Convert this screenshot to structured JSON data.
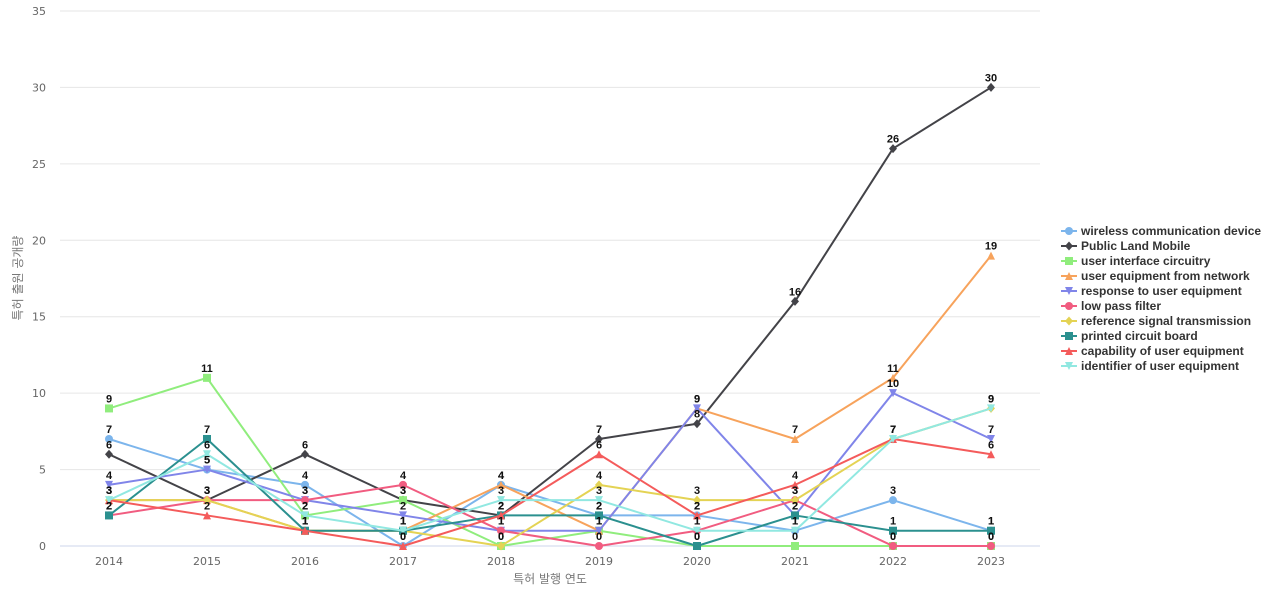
{
  "chart_data": {
    "type": "line",
    "title": "",
    "xlabel": "특허 발행 연도",
    "ylabel": "특허 출원 공개량",
    "ylim": [
      0,
      35
    ],
    "yticks": [
      0,
      5,
      10,
      15,
      20,
      25,
      30,
      35
    ],
    "grid": true,
    "legend_position": "right",
    "categories": [
      "2014",
      "2015",
      "2016",
      "2017",
      "2018",
      "2019",
      "2020",
      "2021",
      "2022",
      "2023"
    ],
    "series": [
      {
        "name": "wireless communication device",
        "color": "#7cb5ec",
        "marker": "circle",
        "values": [
          7,
          5,
          4,
          0,
          4,
          2,
          2,
          1,
          3,
          1
        ]
      },
      {
        "name": "Public Land Mobile",
        "color": "#434348",
        "marker": "diamond",
        "values": [
          6,
          3,
          6,
          3,
          2,
          7,
          8,
          16,
          26,
          30
        ]
      },
      {
        "name": "user interface circuitry",
        "color": "#90ed7d",
        "marker": "square",
        "values": [
          9,
          11,
          2,
          3,
          0,
          1,
          0,
          0,
          0,
          0
        ]
      },
      {
        "name": "user equipment from network",
        "color": "#f7a35c",
        "marker": "triangle",
        "values": [
          3,
          3,
          1,
          1,
          4,
          1,
          9,
          7,
          11,
          19
        ]
      },
      {
        "name": "response to user equipment",
        "color": "#8085e9",
        "marker": "triangle-down",
        "values": [
          4,
          5,
          3,
          2,
          1,
          1,
          9,
          2,
          10,
          7
        ]
      },
      {
        "name": "low pass filter",
        "color": "#f15c80",
        "marker": "circle",
        "values": [
          2,
          3,
          3,
          4,
          1,
          0,
          1,
          3,
          0,
          0
        ]
      },
      {
        "name": "reference signal transmission",
        "color": "#e4d354",
        "marker": "diamond",
        "values": [
          3,
          3,
          1,
          1,
          0,
          4,
          3,
          3,
          7,
          9
        ]
      },
      {
        "name": "printed circuit board",
        "color": "#2b908f",
        "marker": "square",
        "values": [
          2,
          7,
          1,
          1,
          2,
          2,
          0,
          2,
          1,
          1
        ]
      },
      {
        "name": "capability of user equipment",
        "color": "#f45b5b",
        "marker": "triangle",
        "values": [
          3,
          2,
          1,
          0,
          2,
          6,
          2,
          4,
          7,
          6
        ]
      },
      {
        "name": "identifier of user equipment",
        "color": "#91e8e1",
        "marker": "triangle-down",
        "values": [
          3,
          6,
          2,
          1,
          3,
          3,
          1,
          1,
          7,
          9
        ]
      }
    ]
  }
}
